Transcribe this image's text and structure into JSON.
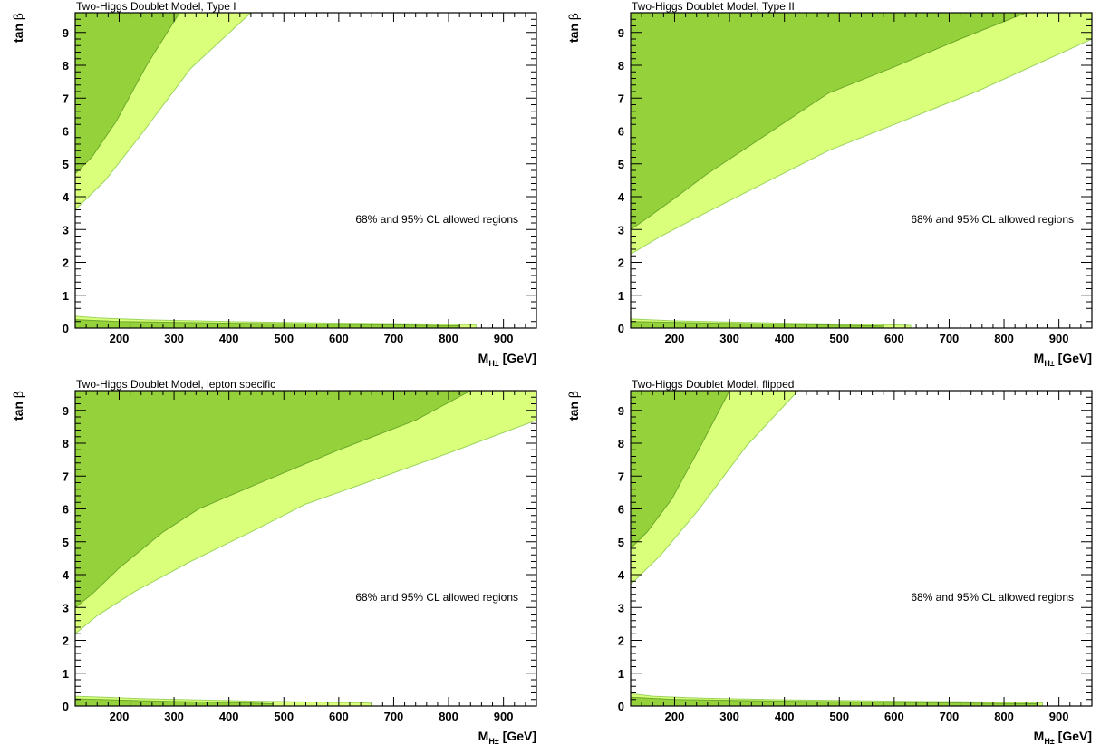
{
  "colors": {
    "region_95": "#DAFF7A",
    "region_68": "#94D13B",
    "edge_95": "#9AD45C",
    "edge_68": "#6BA82B",
    "frame": "#000000"
  },
  "chart_data": [
    {
      "type": "area",
      "title": "Two-Higgs Doublet Model, Type I",
      "xlabel_main": "M",
      "xlabel_sub": "H±",
      "xlabel_unit": "[GeV]",
      "ylabel_main": "tan",
      "ylabel_greek": "β",
      "annotation": "68% and 95% CL allowed regions",
      "xlim": [
        120,
        960
      ],
      "ylim": [
        0,
        9.6
      ],
      "xticks": [
        "200",
        "300",
        "400",
        "500",
        "600",
        "700",
        "800",
        "900"
      ],
      "xtick_values": [
        200,
        300,
        400,
        500,
        600,
        700,
        800,
        900
      ],
      "yticks": [
        "0",
        "1",
        "2",
        "3",
        "4",
        "5",
        "6",
        "7",
        "8",
        "9"
      ],
      "ytick_values": [
        0,
        1,
        2,
        3,
        4,
        5,
        6,
        7,
        8,
        9
      ],
      "series": [
        {
          "region": "95",
          "polygon": [
            [
              120,
              3.6
            ],
            [
              175,
              4.5
            ],
            [
              245,
              6.0
            ],
            [
              330,
              7.9
            ],
            [
              440,
              9.6
            ],
            [
              120,
              9.6
            ]
          ]
        },
        {
          "region": "68",
          "polygon": [
            [
              120,
              4.7
            ],
            [
              150,
              5.2
            ],
            [
              195,
              6.3
            ],
            [
              250,
              8.0
            ],
            [
              310,
              9.6
            ],
            [
              120,
              9.6
            ]
          ]
        },
        {
          "region": "95",
          "polygon": [
            [
              120,
              0.0
            ],
            [
              120,
              0.36
            ],
            [
              160,
              0.31
            ],
            [
              250,
              0.25
            ],
            [
              400,
              0.2
            ],
            [
              600,
              0.15
            ],
            [
              800,
              0.12
            ],
            [
              850,
              0.1
            ],
            [
              850,
              0.0
            ]
          ]
        },
        {
          "region": "68",
          "polygon": [
            [
              120,
              0.0
            ],
            [
              120,
              0.26
            ],
            [
              200,
              0.2
            ],
            [
              400,
              0.15
            ],
            [
              700,
              0.1
            ],
            [
              820,
              0.07
            ],
            [
              820,
              0.0
            ]
          ]
        }
      ]
    },
    {
      "type": "area",
      "title": "Two-Higgs Doublet Model, Type II",
      "xlabel_main": "M",
      "xlabel_sub": "H±",
      "xlabel_unit": "[GeV]",
      "ylabel_main": "tan",
      "ylabel_greek": "β",
      "annotation": "68% and 95% CL allowed regions",
      "xlim": [
        120,
        960
      ],
      "ylim": [
        0,
        9.6
      ],
      "xticks": [
        "200",
        "300",
        "400",
        "500",
        "600",
        "700",
        "800",
        "900"
      ],
      "xtick_values": [
        200,
        300,
        400,
        500,
        600,
        700,
        800,
        900
      ],
      "yticks": [
        "0",
        "1",
        "2",
        "3",
        "4",
        "5",
        "6",
        "7",
        "8",
        "9"
      ],
      "ytick_values": [
        0,
        1,
        2,
        3,
        4,
        5,
        6,
        7,
        8,
        9
      ],
      "series": [
        {
          "region": "95",
          "polygon": [
            [
              120,
              2.25
            ],
            [
              170,
              2.75
            ],
            [
              250,
              3.45
            ],
            [
              350,
              4.3
            ],
            [
              480,
              5.4
            ],
            [
              600,
              6.2
            ],
            [
              750,
              7.2
            ],
            [
              960,
              8.8
            ],
            [
              960,
              9.6
            ],
            [
              120,
              9.6
            ]
          ]
        },
        {
          "region": "68",
          "polygon": [
            [
              120,
              3.0
            ],
            [
              150,
              3.35
            ],
            [
              200,
              3.95
            ],
            [
              260,
              4.7
            ],
            [
              350,
              5.7
            ],
            [
              480,
              7.15
            ],
            [
              600,
              7.95
            ],
            [
              720,
              8.8
            ],
            [
              840,
              9.6
            ],
            [
              120,
              9.6
            ]
          ]
        },
        {
          "region": "95",
          "polygon": [
            [
              120,
              0.0
            ],
            [
              120,
              0.28
            ],
            [
              200,
              0.22
            ],
            [
              400,
              0.15
            ],
            [
              600,
              0.1
            ],
            [
              630,
              0.08
            ],
            [
              630,
              0.0
            ]
          ]
        },
        {
          "region": "68",
          "polygon": [
            [
              120,
              0.0
            ],
            [
              120,
              0.2
            ],
            [
              300,
              0.14
            ],
            [
              500,
              0.09
            ],
            [
              580,
              0.06
            ],
            [
              580,
              0.0
            ]
          ]
        }
      ]
    },
    {
      "type": "area",
      "title": "Two-Higgs Doublet Model, lepton specific",
      "xlabel_main": "M",
      "xlabel_sub": "H±",
      "xlabel_unit": "[GeV]",
      "ylabel_main": "tan",
      "ylabel_greek": "β",
      "annotation": "68% and 95% CL allowed regions",
      "xlim": [
        120,
        960
      ],
      "ylim": [
        0,
        9.6
      ],
      "xticks": [
        "200",
        "300",
        "400",
        "500",
        "600",
        "700",
        "800",
        "900"
      ],
      "xtick_values": [
        200,
        300,
        400,
        500,
        600,
        700,
        800,
        900
      ],
      "yticks": [
        "0",
        "1",
        "2",
        "3",
        "4",
        "5",
        "6",
        "7",
        "8",
        "9"
      ],
      "ytick_values": [
        0,
        1,
        2,
        3,
        4,
        5,
        6,
        7,
        8,
        9
      ],
      "series": [
        {
          "region": "95",
          "polygon": [
            [
              120,
              2.2
            ],
            [
              160,
              2.75
            ],
            [
              230,
              3.5
            ],
            [
              330,
              4.4
            ],
            [
              440,
              5.3
            ],
            [
              540,
              6.15
            ],
            [
              650,
              6.8
            ],
            [
              800,
              7.7
            ],
            [
              960,
              8.7
            ],
            [
              960,
              9.6
            ],
            [
              120,
              9.6
            ]
          ]
        },
        {
          "region": "68",
          "polygon": [
            [
              120,
              3.0
            ],
            [
              150,
              3.4
            ],
            [
              200,
              4.2
            ],
            [
              280,
              5.3
            ],
            [
              345,
              6.0
            ],
            [
              450,
              6.75
            ],
            [
              600,
              7.8
            ],
            [
              740,
              8.7
            ],
            [
              840,
              9.6
            ],
            [
              120,
              9.6
            ]
          ]
        },
        {
          "region": "95",
          "polygon": [
            [
              120,
              0.0
            ],
            [
              120,
              0.3
            ],
            [
              250,
              0.22
            ],
            [
              450,
              0.15
            ],
            [
              650,
              0.1
            ],
            [
              660,
              0.08
            ],
            [
              660,
              0.0
            ]
          ]
        },
        {
          "region": "68",
          "polygon": [
            [
              120,
              0.0
            ],
            [
              120,
              0.22
            ],
            [
              250,
              0.16
            ],
            [
              420,
              0.1
            ],
            [
              480,
              0.07
            ],
            [
              480,
              0.0
            ]
          ]
        }
      ]
    },
    {
      "type": "area",
      "title": "Two-Higgs Doublet Model, flipped",
      "xlabel_main": "M",
      "xlabel_sub": "H±",
      "xlabel_unit": "[GeV]",
      "ylabel_main": "tan",
      "ylabel_greek": "β",
      "annotation": "68% and 95% CL allowed regions",
      "xlim": [
        120,
        960
      ],
      "ylim": [
        0,
        9.6
      ],
      "xticks": [
        "200",
        "300",
        "400",
        "500",
        "600",
        "700",
        "800",
        "900"
      ],
      "xtick_values": [
        200,
        300,
        400,
        500,
        600,
        700,
        800,
        900
      ],
      "yticks": [
        "0",
        "1",
        "2",
        "3",
        "4",
        "5",
        "6",
        "7",
        "8",
        "9"
      ],
      "ytick_values": [
        0,
        1,
        2,
        3,
        4,
        5,
        6,
        7,
        8,
        9
      ],
      "series": [
        {
          "region": "95",
          "polygon": [
            [
              120,
              3.7
            ],
            [
              175,
              4.6
            ],
            [
              245,
              6.0
            ],
            [
              330,
              7.9
            ],
            [
              425,
              9.6
            ],
            [
              120,
              9.6
            ]
          ]
        },
        {
          "region": "68",
          "polygon": [
            [
              120,
              4.8
            ],
            [
              150,
              5.3
            ],
            [
              195,
              6.3
            ],
            [
              250,
              8.0
            ],
            [
              300,
              9.6
            ],
            [
              120,
              9.6
            ]
          ]
        },
        {
          "region": "95",
          "polygon": [
            [
              120,
              0.0
            ],
            [
              120,
              0.38
            ],
            [
              160,
              0.3
            ],
            [
              250,
              0.24
            ],
            [
              400,
              0.19
            ],
            [
              600,
              0.15
            ],
            [
              800,
              0.12
            ],
            [
              870,
              0.1
            ],
            [
              870,
              0.0
            ]
          ]
        },
        {
          "region": "68",
          "polygon": [
            [
              120,
              0.0
            ],
            [
              120,
              0.27
            ],
            [
              200,
              0.2
            ],
            [
              400,
              0.15
            ],
            [
              700,
              0.1
            ],
            [
              860,
              0.07
            ],
            [
              860,
              0.0
            ]
          ]
        }
      ]
    }
  ]
}
